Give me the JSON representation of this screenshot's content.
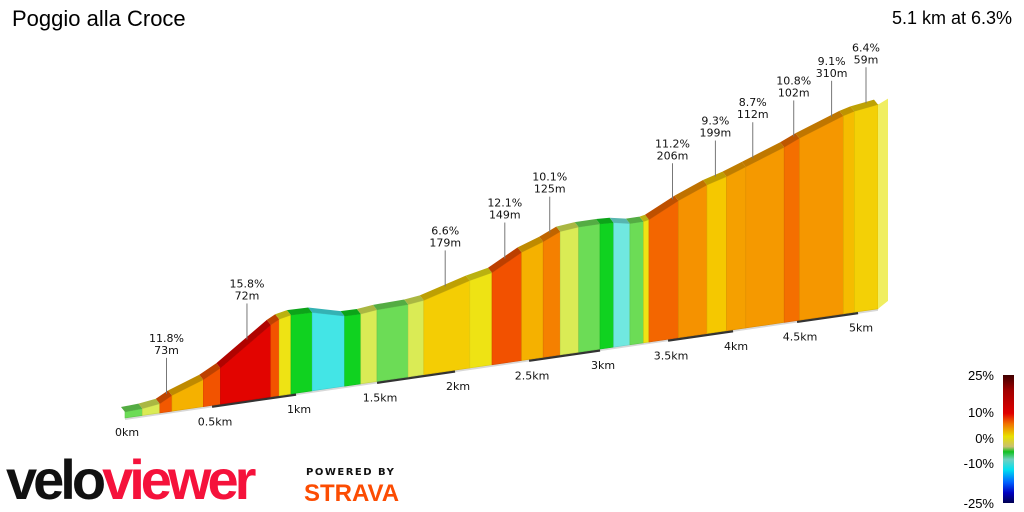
{
  "header": {
    "title": "Poggio alla Croce",
    "summary": "5.1 km at 6.3%"
  },
  "legend": {
    "labels": [
      "25%",
      "10%",
      "0%",
      "-10%",
      "-25%"
    ]
  },
  "branding": {
    "velo": "velo",
    "viewer": "viewer",
    "powered_by": "POWERED BY",
    "strava": "STRAVA"
  },
  "chart_data": {
    "type": "area",
    "title": "Poggio alla Croce",
    "xlabel": "",
    "ylabel": "",
    "xlim": [
      0,
      5.1
    ],
    "x_ticks": [
      "0km",
      "0.5km",
      "1km",
      "1.5km",
      "2km",
      "2.5km",
      "3km",
      "3.5km",
      "4km",
      "4.5km",
      "5km"
    ],
    "x_tick_values": [
      0,
      0.5,
      1,
      1.5,
      2,
      2.5,
      3,
      3.5,
      4,
      4.5,
      5
    ],
    "color_scale": {
      "min": -25,
      "max": 25,
      "unit": "%"
    },
    "segments": [
      {
        "from_km": 0,
        "to_km": 0.1,
        "gradient": 1
      },
      {
        "from_km": 0.1,
        "to_km": 0.2,
        "gradient": 3
      },
      {
        "from_km": 0.2,
        "to_km": 0.27,
        "gradient": 11.8
      },
      {
        "from_km": 0.27,
        "to_km": 0.45,
        "gradient": 8
      },
      {
        "from_km": 0.45,
        "to_km": 0.55,
        "gradient": 12
      },
      {
        "from_km": 0.55,
        "to_km": 0.85,
        "gradient": 15.8
      },
      {
        "from_km": 0.85,
        "to_km": 0.9,
        "gradient": 12
      },
      {
        "from_km": 0.9,
        "to_km": 0.97,
        "gradient": 5
      },
      {
        "from_km": 0.97,
        "to_km": 1.1,
        "gradient": 0
      },
      {
        "from_km": 1.1,
        "to_km": 1.3,
        "gradient": -5
      },
      {
        "from_km": 1.3,
        "to_km": 1.4,
        "gradient": 0
      },
      {
        "from_km": 1.4,
        "to_km": 1.5,
        "gradient": 3
      },
      {
        "from_km": 1.5,
        "to_km": 1.7,
        "gradient": 1
      },
      {
        "from_km": 1.7,
        "to_km": 1.8,
        "gradient": 3
      },
      {
        "from_km": 1.8,
        "to_km": 2.1,
        "gradient": 6.6
      },
      {
        "from_km": 2.1,
        "to_km": 2.25,
        "gradient": 5
      },
      {
        "from_km": 2.25,
        "to_km": 2.45,
        "gradient": 12.1
      },
      {
        "from_km": 2.45,
        "to_km": 2.6,
        "gradient": 8
      },
      {
        "from_km": 2.6,
        "to_km": 2.72,
        "gradient": 10.1
      },
      {
        "from_km": 2.72,
        "to_km": 2.85,
        "gradient": 3
      },
      {
        "from_km": 2.85,
        "to_km": 3.0,
        "gradient": 1
      },
      {
        "from_km": 3.0,
        "to_km": 3.1,
        "gradient": 0
      },
      {
        "from_km": 3.1,
        "to_km": 3.22,
        "gradient": -3
      },
      {
        "from_km": 3.22,
        "to_km": 3.32,
        "gradient": 1
      },
      {
        "from_km": 3.32,
        "to_km": 3.36,
        "gradient": 5
      },
      {
        "from_km": 3.36,
        "to_km": 3.58,
        "gradient": 11.2
      },
      {
        "from_km": 3.58,
        "to_km": 3.8,
        "gradient": 9.3
      },
      {
        "from_km": 3.8,
        "to_km": 3.95,
        "gradient": 7
      },
      {
        "from_km": 3.95,
        "to_km": 4.1,
        "gradient": 8.7
      },
      {
        "from_km": 4.1,
        "to_km": 4.4,
        "gradient": 9
      },
      {
        "from_km": 4.4,
        "to_km": 4.52,
        "gradient": 10.8
      },
      {
        "from_km": 4.52,
        "to_km": 4.88,
        "gradient": 9.1
      },
      {
        "from_km": 4.88,
        "to_km": 4.97,
        "gradient": 7.5
      },
      {
        "from_km": 4.97,
        "to_km": 5.1,
        "gradient": 6.4
      }
    ],
    "annotations": [
      {
        "km": 0.25,
        "gradient": "11.8%",
        "length": "73m"
      },
      {
        "km": 0.72,
        "gradient": "15.8%",
        "length": "72m"
      },
      {
        "km": 1.95,
        "gradient": "6.6%",
        "length": "179m"
      },
      {
        "km": 2.35,
        "gradient": "12.1%",
        "length": "149m"
      },
      {
        "km": 2.66,
        "gradient": "10.1%",
        "length": "125m"
      },
      {
        "km": 3.55,
        "gradient": "11.2%",
        "length": "206m"
      },
      {
        "km": 3.88,
        "gradient": "9.3%",
        "length": "199m"
      },
      {
        "km": 4.17,
        "gradient": "8.7%",
        "length": "112m"
      },
      {
        "km": 4.49,
        "gradient": "10.8%",
        "length": "102m"
      },
      {
        "km": 4.8,
        "gradient": "9.1%",
        "length": "310m"
      },
      {
        "km": 5.05,
        "gradient": "6.4%",
        "length": "59m"
      }
    ]
  }
}
